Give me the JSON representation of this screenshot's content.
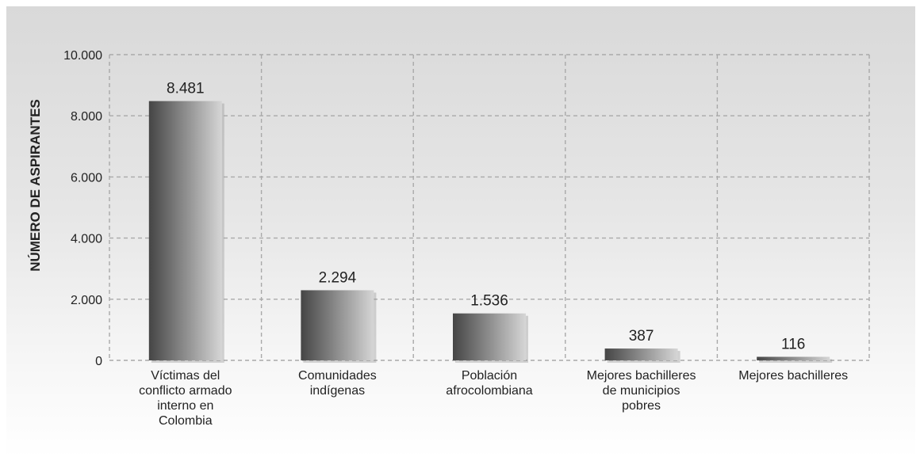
{
  "chart_data": {
    "type": "bar",
    "ylabel": "NÚMERO DE ASPIRANTES",
    "xlabel": "",
    "ylim": [
      0,
      10000
    ],
    "yticks": [
      0,
      2000,
      4000,
      6000,
      8000,
      10000
    ],
    "ytick_labels": [
      "0",
      "2.000",
      "4.000",
      "6.000",
      "8.000",
      "10.000"
    ],
    "grid": true,
    "categories": [
      [
        "Víctimas del",
        "conflicto armado",
        "interno en",
        "Colombia"
      ],
      [
        "Comunidades",
        "indígenas"
      ],
      [
        "Población",
        "afrocolombiana"
      ],
      [
        "Mejores bachilleres",
        "de municipios",
        "pobres"
      ],
      [
        "Mejores bachilleres"
      ]
    ],
    "values": [
      8481,
      2294,
      1536,
      387,
      116
    ],
    "value_labels": [
      "8.481",
      "2.294",
      "1.536",
      "387",
      "116"
    ],
    "bar_gradient": [
      "#454545",
      "#d6d6d6"
    ]
  }
}
